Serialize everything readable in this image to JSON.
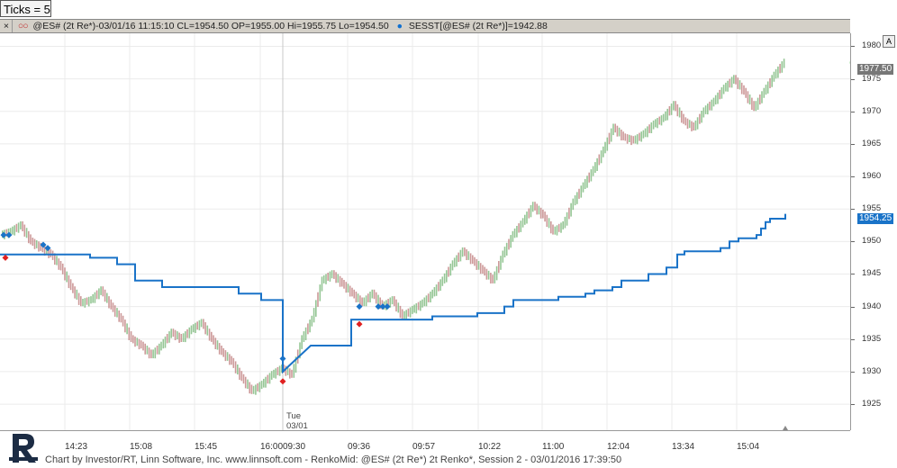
{
  "ticks_box": "Ticks = 5",
  "info_bar": {
    "close": "×",
    "circles": "○○",
    "symbol_info": "@ES# (2t Re*)-03/01/16 11:15:10 CL=1954.50 OP=1955.00 Hi=1955.75 Lo=1954.50",
    "sess_info": "SESST[@ES# (2t Re*)]=1942.88"
  },
  "price_axis": {
    "labels": [
      "1980",
      "1975",
      "1970",
      "1965",
      "1960",
      "1955",
      "1950",
      "1945",
      "1940",
      "1935",
      "1930",
      "1925"
    ],
    "last_price": "1977.50",
    "session_price": "1954.25",
    "a_button": "A"
  },
  "time_axis": {
    "labels": [
      "14:23",
      "15:08",
      "15:45",
      "16:00",
      "09:30",
      "09:36",
      "09:57",
      "10:22",
      "11:00",
      "12:04",
      "13:34",
      "15:04"
    ]
  },
  "day_marker": {
    "day": "Tue",
    "date": "03/01"
  },
  "footer": "Chart by Investor/RT, Linn Software, Inc. www.linnsoft.com - RenkoMid: @ES# (2t Re*) 2t Renko*, Session 2 - 03/01/2016 17:39:50",
  "colors": {
    "session_line": "#1a73c8",
    "renko_up": "#7ab87a",
    "renko_down": "#c08080",
    "marker_blue": "#1a73c8",
    "marker_red": "#e02020"
  },
  "chart_data": {
    "type": "line",
    "series": [
      {
        "name": "@ES# (2t Re*)",
        "values": [
          1951.0,
          1951.5,
          1952.5,
          1950.0,
          1949.0,
          1948.0,
          1946.0,
          1943.0,
          1940.5,
          1941.0,
          1942.5,
          1940.0,
          1938.0,
          1935.0,
          1934.0,
          1932.5,
          1934.0,
          1936.0,
          1935.0,
          1936.5,
          1937.5,
          1935.0,
          1933.0,
          1931.5,
          1929.0,
          1927.0,
          1928.0,
          1929.5,
          1930.5,
          1929.5,
          1935.0,
          1938.0,
          1944.0,
          1945.0,
          1943.5,
          1942.0,
          1940.5,
          1942.0,
          1940.0,
          1941.0,
          1938.5,
          1939.5,
          1940.5,
          1942.0,
          1944.0,
          1946.5,
          1948.5,
          1947.0,
          1945.5,
          1944.0,
          1948.0,
          1951.0,
          1953.0,
          1955.5,
          1954.0,
          1951.5,
          1952.5,
          1956.0,
          1958.5,
          1961.0,
          1964.0,
          1967.5,
          1966.0,
          1965.5,
          1966.5,
          1968.0,
          1969.0,
          1971.0,
          1968.5,
          1967.5,
          1970.0,
          1971.5,
          1973.5,
          1975.0,
          1973.0,
          1970.5,
          1973.0,
          1975.5,
          1977.5
        ]
      },
      {
        "name": "SESST",
        "values": [
          1948.0,
          1948.0,
          1948.0,
          1947.5,
          1946.5,
          1944.0,
          1943.0,
          1943.0,
          1943.0,
          1942.0,
          1941.0,
          1941.0,
          1930.0,
          1934.0,
          1938.0,
          1938.0,
          1938.0,
          1938.0,
          1938.5,
          1939.0,
          1939.0,
          1940.0,
          1941.0,
          1941.5,
          1941.5,
          1942.0,
          1942.5,
          1943.0,
          1944.0,
          1945.0,
          1946.0,
          1948.0,
          1948.5,
          1949.0,
          1950.0,
          1950.5,
          1950.5,
          1951.0,
          1952.0,
          1953.0,
          1953.5,
          1953.5,
          1954.25
        ]
      }
    ],
    "ylim": [
      1921,
      1982
    ],
    "ylabel": "",
    "xlabel": "",
    "xticks": [
      "14:23",
      "15:08",
      "15:45",
      "16:00",
      "09:30",
      "09:36",
      "09:57",
      "10:22",
      "11:00",
      "12:04",
      "13:34",
      "15:04"
    ],
    "grid": true
  }
}
